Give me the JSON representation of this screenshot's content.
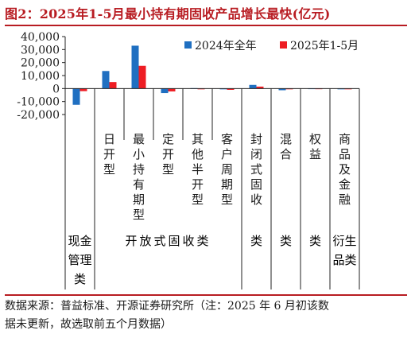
{
  "title": "图2：2025年1-5月最小持有期固收产品增长最快(亿元)",
  "source_line1": "数据来源：普益标准、开源证券研究所（注：2025 年 6 月初该数",
  "source_line2": "据未更新，故选取前五个月数据）",
  "colors": {
    "series_2024": "#1f6fc1",
    "series_2025": "#ee1d23",
    "title": "#b81c22",
    "grid": "#222222"
  },
  "chart_data": {
    "type": "bar",
    "title": "图2：2025年1-5月最小持有期固收产品增长最快(亿元)",
    "ylim": [
      -20000,
      40000
    ],
    "yticks": [
      -20000,
      -10000,
      0,
      10000,
      20000,
      30000,
      40000
    ],
    "ytick_labels": [
      "-20,000",
      "-10,000",
      "0",
      "10,000",
      "20,000",
      "30,000",
      "40,000"
    ],
    "legend_position": "top-right",
    "categories": [
      {
        "label": "现金管理类",
        "group": ""
      },
      {
        "label": "日开型",
        "group": "开放式固收类"
      },
      {
        "label": "最小持有期型",
        "group": "开放式固收类"
      },
      {
        "label": "定开型",
        "group": "开放式固收类"
      },
      {
        "label": "其他半开型",
        "group": "开放式固收类"
      },
      {
        "label": "客户周期型",
        "group": "开放式固收类"
      },
      {
        "label": "封闭式固收",
        "group": "类"
      },
      {
        "label": "混合",
        "group": "类"
      },
      {
        "label": "权益",
        "group": "类"
      },
      {
        "label": "商品及金融",
        "group": "衍生品类"
      }
    ],
    "series": [
      {
        "name": "2024年全年",
        "values": [
          -12500,
          13500,
          33000,
          -3500,
          300,
          -300,
          2800,
          -1300,
          150,
          -200
        ]
      },
      {
        "name": "2025年1-5月",
        "values": [
          -2000,
          5000,
          17500,
          -2200,
          -600,
          -1000,
          1500,
          -200,
          100,
          -100
        ]
      }
    ]
  }
}
